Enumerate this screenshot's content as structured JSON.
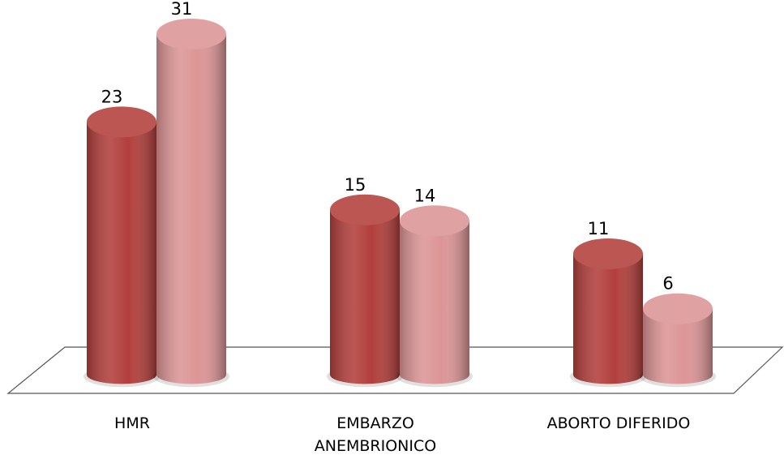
{
  "chart_data": {
    "type": "bar3d",
    "categories": [
      "HMR",
      "EMBARZO\nANEMBRIONICO",
      "ABORTO DIFERIDO"
    ],
    "series": [
      {
        "color": "#b23f3c",
        "values": [
          23,
          15,
          11
        ]
      },
      {
        "color": "#dc9596",
        "values": [
          31,
          14,
          6
        ]
      }
    ]
  }
}
